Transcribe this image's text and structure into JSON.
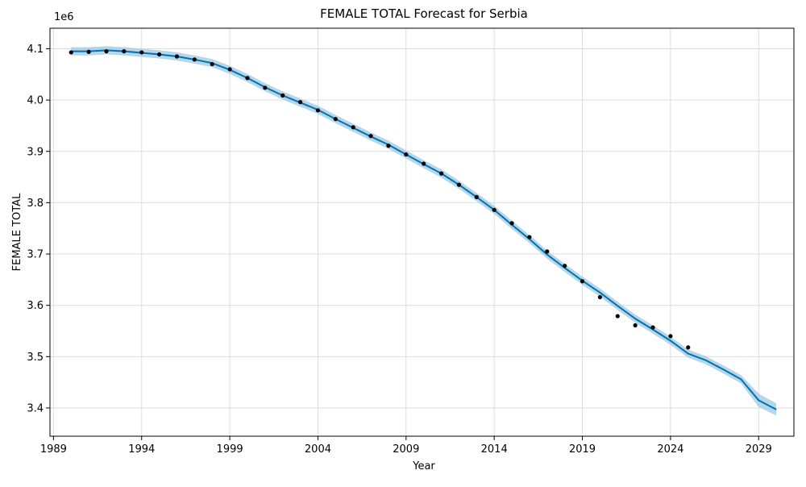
{
  "chart_data": {
    "type": "line",
    "title": "FEMALE TOTAL Forecast for Serbia",
    "xlabel": "Year",
    "ylabel": "FEMALE TOTAL",
    "y_offset_label": "1e6",
    "x_ticks": [
      1989,
      1994,
      1999,
      2004,
      2009,
      2014,
      2019,
      2024,
      2029
    ],
    "y_ticks": [
      3.4,
      3.5,
      3.6,
      3.7,
      3.8,
      3.9,
      4.0,
      4.1
    ],
    "xlim": [
      1988.8,
      2031.0
    ],
    "ylim": [
      3.345,
      4.14
    ],
    "grid": true,
    "colors": {
      "forecast_line": "#0072B2",
      "interval_fill": "#9ecae1",
      "actual_points": "#000000",
      "grid": "#dddddd"
    },
    "series": [
      {
        "kind": "forecast",
        "x": [
          1990,
          1991,
          1992,
          1993,
          1994,
          1995,
          1996,
          1997,
          1998,
          1999,
          2000,
          2001,
          2002,
          2003,
          2004,
          2005,
          2006,
          2007,
          2008,
          2009,
          2010,
          2011,
          2012,
          2013,
          2014,
          2015,
          2016,
          2017,
          2018,
          2019,
          2020,
          2021,
          2022,
          2023,
          2024,
          2025,
          2026,
          2027,
          2028,
          2029,
          2030
        ],
        "y": [
          4.095,
          4.095,
          4.097,
          4.095,
          4.092,
          4.089,
          4.085,
          4.079,
          4.072,
          4.059,
          4.043,
          4.025,
          4.009,
          3.995,
          3.981,
          3.963,
          3.946,
          3.929,
          3.913,
          3.894,
          3.875,
          3.857,
          3.835,
          3.811,
          3.786,
          3.757,
          3.729,
          3.699,
          3.673,
          3.648,
          3.625,
          3.599,
          3.574,
          3.553,
          3.531,
          3.506,
          3.493,
          3.475,
          3.456,
          3.415,
          3.397
        ],
        "lower": [
          4.087,
          4.087,
          4.089,
          4.087,
          4.084,
          4.081,
          4.077,
          4.071,
          4.064,
          4.051,
          4.035,
          4.017,
          4.001,
          3.987,
          3.973,
          3.955,
          3.938,
          3.921,
          3.905,
          3.886,
          3.867,
          3.849,
          3.827,
          3.803,
          3.778,
          3.749,
          3.721,
          3.691,
          3.665,
          3.64,
          3.617,
          3.591,
          3.566,
          3.545,
          3.523,
          3.498,
          3.485,
          3.467,
          3.448,
          3.402,
          3.385
        ],
        "upper": [
          4.103,
          4.103,
          4.105,
          4.103,
          4.1,
          4.097,
          4.093,
          4.087,
          4.08,
          4.067,
          4.051,
          4.033,
          4.017,
          4.003,
          3.989,
          3.971,
          3.954,
          3.937,
          3.921,
          3.902,
          3.883,
          3.865,
          3.843,
          3.819,
          3.794,
          3.765,
          3.737,
          3.707,
          3.681,
          3.656,
          3.633,
          3.607,
          3.582,
          3.561,
          3.539,
          3.514,
          3.501,
          3.483,
          3.464,
          3.428,
          3.409
        ]
      },
      {
        "kind": "actual",
        "x": [
          1990,
          1991,
          1992,
          1993,
          1994,
          1995,
          1996,
          1997,
          1998,
          1999,
          2000,
          2001,
          2002,
          2003,
          2004,
          2005,
          2006,
          2007,
          2008,
          2009,
          2010,
          2011,
          2012,
          2013,
          2014,
          2015,
          2016,
          2017,
          2018,
          2019,
          2020,
          2021,
          2022,
          2023,
          2024,
          2025
        ],
        "y": [
          4.093,
          4.094,
          4.095,
          4.095,
          4.093,
          4.089,
          4.085,
          4.079,
          4.07,
          4.06,
          4.043,
          4.024,
          4.009,
          3.996,
          3.98,
          3.963,
          3.947,
          3.93,
          3.911,
          3.894,
          3.876,
          3.857,
          3.835,
          3.811,
          3.786,
          3.76,
          3.733,
          3.705,
          3.677,
          3.647,
          3.616,
          3.579,
          3.561,
          3.557,
          3.54,
          3.518
        ]
      }
    ]
  }
}
